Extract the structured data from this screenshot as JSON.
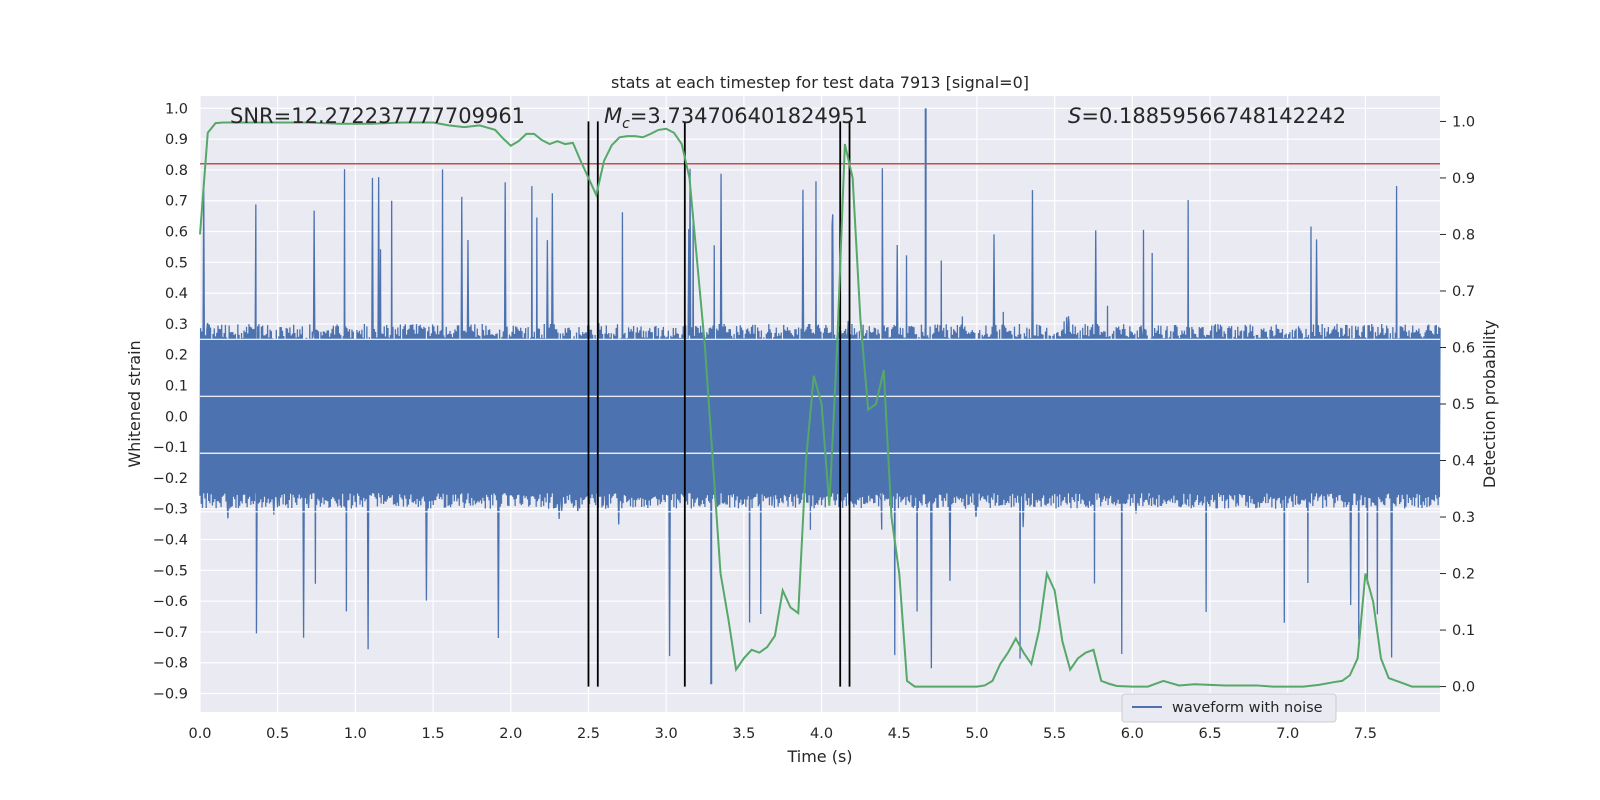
{
  "chart_data": {
    "type": "line",
    "title": "stats at each timestep for test data 7913 [signal=0]",
    "xlabel": "Time (s)",
    "ylabel": "Whitened strain",
    "y2label": "Detection probability",
    "xlim": [
      0.0,
      7.98
    ],
    "ylim": [
      -0.96,
      1.04
    ],
    "y2lim": [
      -0.045,
      1.045
    ],
    "xticks": [
      0.0,
      0.5,
      1.0,
      1.5,
      2.0,
      2.5,
      3.0,
      3.5,
      4.0,
      4.5,
      5.0,
      5.5,
      6.0,
      6.5,
      7.0,
      7.5
    ],
    "xtick_labels": [
      "0.0",
      "0.5",
      "1.0",
      "1.5",
      "2.0",
      "2.5",
      "3.0",
      "3.5",
      "4.0",
      "4.5",
      "5.0",
      "5.5",
      "6.0",
      "6.5",
      "7.0",
      "7.5"
    ],
    "yticks": [
      -0.9,
      -0.8,
      -0.7,
      -0.6,
      -0.5,
      -0.4,
      -0.3,
      -0.2,
      -0.1,
      0.0,
      0.1,
      0.2,
      0.3,
      0.4,
      0.5,
      0.6,
      0.7,
      0.8,
      0.9,
      1.0
    ],
    "ytick_labels": [
      "−0.9",
      "−0.8",
      "−0.7",
      "−0.6",
      "−0.5",
      "−0.4",
      "−0.3",
      "−0.2",
      "−0.1",
      "0.0",
      "0.1",
      "0.2",
      "0.3",
      "0.4",
      "0.5",
      "0.6",
      "0.7",
      "0.8",
      "0.9",
      "1.0"
    ],
    "y2ticks": [
      0.0,
      0.1,
      0.2,
      0.3,
      0.4,
      0.5,
      0.6,
      0.7,
      0.8,
      0.9,
      1.0
    ],
    "y2tick_labels": [
      "0.0",
      "0.1",
      "0.2",
      "0.3",
      "0.4",
      "0.5",
      "0.6",
      "0.7",
      "0.8",
      "0.9",
      "1.0"
    ],
    "grid": true,
    "legend_position": "lower-right",
    "annotations": {
      "snr": "SNR=12.272237777709961",
      "mc_symbol": "M",
      "mc_sub": "c",
      "mc_value": "=3.734706401824951",
      "s_symbol": "S",
      "s_value": "=0.18859566748142242"
    },
    "series": [
      {
        "name": "waveform with noise",
        "color": "#4c72b0",
        "axis": "left",
        "kind": "noise-strain",
        "sample_count": 2000,
        "band_abs": 0.25,
        "envelope_abs": 0.48,
        "extreme_peak_max": 1.0,
        "extreme_trough_min": -0.87,
        "seed": 7913
      },
      {
        "color": "#55a868",
        "axis": "right",
        "x": [
          0.0,
          0.05,
          0.1,
          0.15,
          0.2,
          0.3,
          0.4,
          0.5,
          0.6,
          0.7,
          0.8,
          0.9,
          1.0,
          1.1,
          1.2,
          1.3,
          1.4,
          1.5,
          1.6,
          1.7,
          1.8,
          1.9,
          1.95,
          2.0,
          2.05,
          2.1,
          2.15,
          2.2,
          2.25,
          2.3,
          2.35,
          2.4,
          2.45,
          2.5,
          2.55,
          2.6,
          2.65,
          2.7,
          2.75,
          2.8,
          2.85,
          2.9,
          2.95,
          3.0,
          3.05,
          3.1,
          3.15,
          3.2,
          3.25,
          3.3,
          3.35,
          3.4,
          3.45,
          3.5,
          3.55,
          3.6,
          3.65,
          3.7,
          3.75,
          3.8,
          3.85,
          3.9,
          3.95,
          4.0,
          4.05,
          4.1,
          4.15,
          4.2,
          4.25,
          4.3,
          4.35,
          4.4,
          4.45,
          4.5,
          4.55,
          4.6,
          4.7,
          4.8,
          4.9,
          5.0,
          5.05,
          5.1,
          5.15,
          5.2,
          5.25,
          5.3,
          5.35,
          5.4,
          5.45,
          5.5,
          5.55,
          5.6,
          5.65,
          5.7,
          5.75,
          5.8,
          5.85,
          5.9,
          6.0,
          6.1,
          6.2,
          6.25,
          6.3,
          6.4,
          6.5,
          6.6,
          6.7,
          6.8,
          6.9,
          7.0,
          7.1,
          7.2,
          7.3,
          7.35,
          7.4,
          7.45,
          7.5,
          7.55,
          7.6,
          7.65,
          7.7,
          7.8,
          7.9,
          7.98
        ],
        "y": [
          0.8,
          0.98,
          0.997,
          0.998,
          0.998,
          0.998,
          0.998,
          0.998,
          0.998,
          0.998,
          0.997,
          0.996,
          0.996,
          0.996,
          0.997,
          0.998,
          0.998,
          0.998,
          0.993,
          0.99,
          0.993,
          0.985,
          0.97,
          0.957,
          0.965,
          0.978,
          0.978,
          0.967,
          0.96,
          0.965,
          0.96,
          0.962,
          0.93,
          0.9,
          0.87,
          0.93,
          0.958,
          0.972,
          0.974,
          0.974,
          0.972,
          0.978,
          0.985,
          0.987,
          0.98,
          0.96,
          0.9,
          0.75,
          0.6,
          0.4,
          0.2,
          0.12,
          0.03,
          0.05,
          0.065,
          0.06,
          0.07,
          0.09,
          0.17,
          0.14,
          0.13,
          0.4,
          0.55,
          0.5,
          0.32,
          0.6,
          0.96,
          0.9,
          0.65,
          0.49,
          0.5,
          0.56,
          0.3,
          0.2,
          0.01,
          0.0,
          0.0,
          0.0,
          0.0,
          0.0,
          0.002,
          0.01,
          0.04,
          0.06,
          0.085,
          0.06,
          0.04,
          0.1,
          0.2,
          0.17,
          0.08,
          0.03,
          0.05,
          0.06,
          0.065,
          0.01,
          0.005,
          0.001,
          0.0,
          0.0,
          0.01,
          0.006,
          0.002,
          0.004,
          0.003,
          0.002,
          0.002,
          0.002,
          0.0,
          0.0,
          0.0,
          0.003,
          0.008,
          0.01,
          0.02,
          0.05,
          0.2,
          0.15,
          0.05,
          0.015,
          0.01,
          0.0,
          0.0,
          0.0
        ]
      }
    ],
    "vlines": [
      2.5,
      2.56,
      3.12,
      4.12,
      4.18
    ],
    "hline": {
      "y": 0.82,
      "color": "#c44e52"
    }
  }
}
